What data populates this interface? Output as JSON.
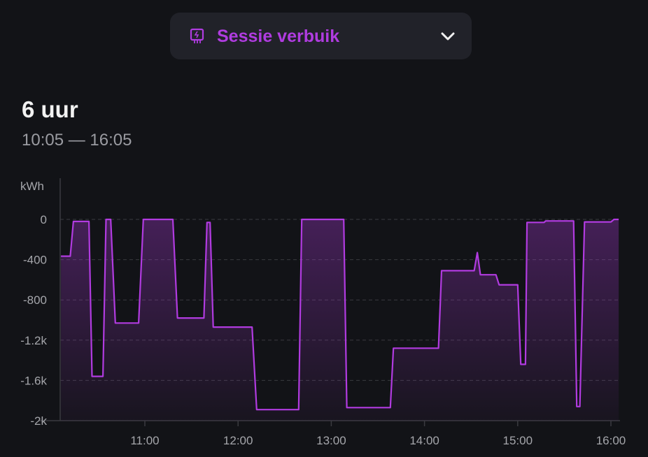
{
  "selector": {
    "label": "Sessie verbuik",
    "icon": "charger-icon",
    "expand_icon": "chevron-down-icon"
  },
  "header": {
    "title": "6 uur",
    "range": "10:05 — 16:05"
  },
  "colors": {
    "accent": "#b13be0",
    "background": "#121317"
  },
  "chart_data": {
    "type": "area",
    "ylabel": "kWh",
    "xlabel": "",
    "x_unit": "minutes after 10:00",
    "ylim": [
      -2000,
      0
    ],
    "yticks": [
      0,
      -400,
      -800,
      -1200,
      -1600,
      -2000
    ],
    "ytick_labels": [
      "0",
      "-400",
      "-800",
      "-1.2k",
      "-1.6k",
      "-2k"
    ],
    "xticks": [
      60,
      120,
      180,
      240,
      300,
      360
    ],
    "xtick_labels": [
      "11:00",
      "12:00",
      "13:00",
      "14:00",
      "15:00",
      "16:00"
    ],
    "xlim": [
      5,
      365
    ],
    "grid": true,
    "series": [
      {
        "name": "Sessie verbuik",
        "x": [
          6,
          12,
          14,
          24,
          26,
          33,
          35,
          38,
          41,
          56,
          59,
          78,
          81,
          98,
          100,
          102,
          104,
          129,
          132,
          159,
          161,
          188,
          190,
          218,
          220,
          249,
          251,
          272,
          274,
          276,
          286,
          288,
          300,
          302,
          305,
          306,
          317,
          318,
          336,
          338,
          340,
          343,
          360,
          362,
          365
        ],
        "y": [
          -365,
          -365,
          -20,
          -20,
          -1560,
          -1560,
          0,
          0,
          -1030,
          -1030,
          0,
          0,
          -980,
          -980,
          -30,
          -30,
          -1070,
          -1070,
          -1890,
          -1890,
          0,
          0,
          -1870,
          -1870,
          -1280,
          -1280,
          -510,
          -510,
          -330,
          -550,
          -550,
          -650,
          -650,
          -1440,
          -1440,
          -30,
          -30,
          -15,
          -15,
          -1860,
          -1860,
          -25,
          -25,
          0,
          0
        ]
      }
    ]
  }
}
